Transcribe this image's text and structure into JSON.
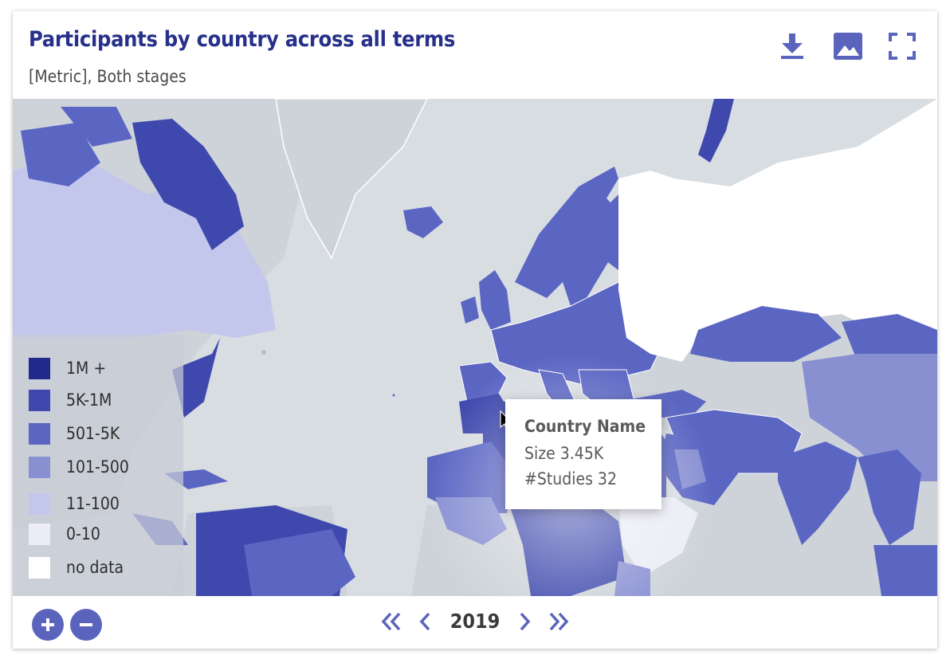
{
  "header": {
    "title": "Participants by country across all terms",
    "subtitle": "[Metric], Both stages"
  },
  "toolbar": {
    "download_icon": "download-icon",
    "image_icon": "image-icon",
    "fullscreen_icon": "fullscreen-icon"
  },
  "legend": {
    "items": [
      {
        "label": "1M +",
        "color": "#202a8c"
      },
      {
        "label": "5K-1M",
        "color": "#3f49ad"
      },
      {
        "label": "501-5K",
        "color": "#5b66c3"
      },
      {
        "label": "101-500",
        "color": "#8990d2"
      },
      {
        "label": "11-100",
        "color": "#c4c7ec"
      },
      {
        "label": "0-10",
        "color": "#ebecf5"
      },
      {
        "label": "no data",
        "color": "#ffffff"
      }
    ]
  },
  "tooltip": {
    "name": "Country Name",
    "size": "Size 3.45K",
    "studies": "#Studies 32"
  },
  "footer": {
    "year": "2019",
    "zoom_in_icon": "plus-icon",
    "zoom_out_icon": "minus-icon",
    "first_icon": "double-chevron-left-icon",
    "prev_icon": "chevron-left-icon",
    "next_icon": "chevron-right-icon",
    "last_icon": "double-chevron-right-icon"
  },
  "colors": {
    "accent": "#5b64bd",
    "title": "#27308a",
    "ocean": "#d8dde2",
    "land_nodata_grey": "#cdd3d9"
  }
}
